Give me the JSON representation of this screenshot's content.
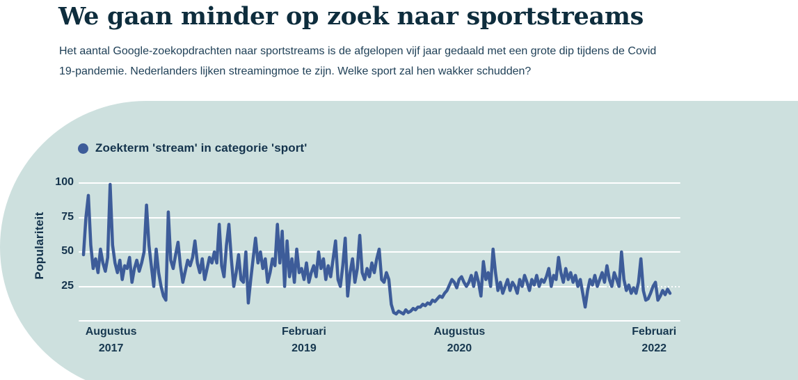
{
  "header": {
    "title": "We gaan minder op zoek naar sportstreams",
    "subtitle": "Het aantal Google-zoekopdrachten naar sportstreams is de afgelopen vijf jaar gedaald met een grote dip tijdens de Covid 19-pandemie. Nederlanders lijken streamingmoe te zijn. Welke sport zal hen wakker schudden?"
  },
  "legend": {
    "label": "Zoekterm 'stream' in categorie 'sport'"
  },
  "colors": {
    "heading": "#0e2d3d",
    "body_text": "#1d3e55",
    "panel_background": "#cde0de",
    "line": "#3d5c99",
    "gridline": "#ffffff",
    "axis_text": "#14334c"
  },
  "chart_data": {
    "type": "line",
    "title": "We gaan minder op zoek naar sportstreams",
    "xlabel": "",
    "ylabel": "Populariteit",
    "ylim": [
      0,
      100
    ],
    "yticks": [
      100,
      75,
      50,
      25
    ],
    "grid": true,
    "legend_position": "top-left",
    "x_ticks": [
      {
        "month": "Augustus",
        "year": "2017",
        "pos": 0.047
      },
      {
        "month": "Februari",
        "year": "2019",
        "pos": 0.376
      },
      {
        "month": "Augustus",
        "year": "2020",
        "pos": 0.641
      },
      {
        "month": "Februari",
        "year": "2022",
        "pos": 0.973
      }
    ],
    "x_unit": "week",
    "x_span": "Mei 2017 – Maart 2022",
    "series": [
      {
        "name": "Zoekterm 'stream' in categorie 'sport'",
        "color": "#3d5c99",
        "values": [
          48,
          75,
          91,
          55,
          38,
          45,
          35,
          52,
          42,
          36,
          46,
          99,
          55,
          42,
          35,
          44,
          30,
          40,
          38,
          46,
          28,
          38,
          44,
          36,
          42,
          50,
          84,
          55,
          40,
          25,
          52,
          35,
          25,
          18,
          15,
          79,
          44,
          38,
          48,
          57,
          40,
          28,
          36,
          44,
          40,
          46,
          58,
          42,
          35,
          45,
          30,
          38,
          46,
          42,
          50,
          42,
          70,
          40,
          32,
          55,
          70,
          45,
          25,
          35,
          48,
          30,
          28,
          50,
          13,
          30,
          45,
          60,
          42,
          50,
          38,
          45,
          28,
          35,
          45,
          40,
          70,
          42,
          65,
          25,
          58,
          32,
          45,
          28,
          52,
          35,
          38,
          30,
          42,
          28,
          35,
          40,
          32,
          50,
          38,
          45,
          30,
          40,
          32,
          45,
          58,
          30,
          25,
          40,
          60,
          18,
          35,
          45,
          28,
          38,
          62,
          35,
          30,
          38,
          32,
          42,
          35,
          45,
          52,
          30,
          28,
          35,
          30,
          12,
          6,
          5,
          7,
          6,
          5,
          8,
          6,
          7,
          9,
          8,
          10,
          10,
          12,
          11,
          13,
          12,
          15,
          14,
          16,
          18,
          17,
          20,
          22,
          26,
          30,
          28,
          24,
          30,
          32,
          28,
          25,
          28,
          33,
          25,
          35,
          28,
          18,
          43,
          30,
          35,
          25,
          52,
          35,
          22,
          28,
          20,
          25,
          30,
          22,
          28,
          25,
          20,
          30,
          25,
          33,
          28,
          22,
          30,
          26,
          33,
          25,
          30,
          28,
          32,
          38,
          25,
          33,
          30,
          46,
          35,
          28,
          38,
          30,
          35,
          28,
          33,
          25,
          30,
          20,
          10,
          22,
          30,
          26,
          33,
          25,
          30,
          35,
          28,
          40,
          30,
          25,
          35,
          30,
          25,
          50,
          30,
          22,
          26,
          20,
          24,
          20,
          28,
          45,
          22,
          15,
          16,
          20,
          25,
          28,
          15,
          18,
          22,
          19,
          23,
          20
        ]
      }
    ],
    "annotations": [
      {
        "type": "dotted_gridline_segment",
        "y": 25,
        "x_from_frac": 0.875,
        "x_to_frac": 1.0
      }
    ]
  }
}
